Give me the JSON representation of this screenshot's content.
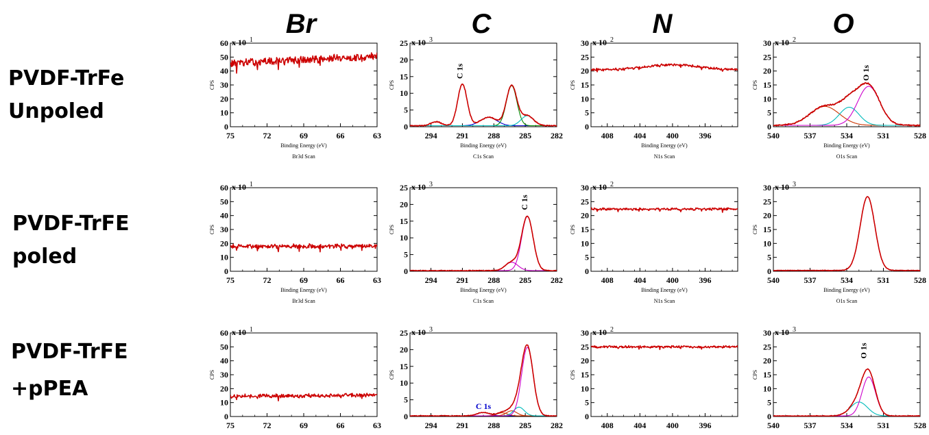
{
  "column_titles": [
    "Br",
    "C",
    "N",
    "O"
  ],
  "row_labels": [
    [
      "PVDF-TrFe",
      "Unpoled"
    ],
    [
      "PVDF-TrFE",
      "poled"
    ],
    [
      "PVDF-TrFE",
      "+pPEA"
    ]
  ],
  "colors": {
    "data": "#cc0000",
    "fit_envelope": "#b03010",
    "peak_magenta": "#cc00cc",
    "peak_cyan": "#00bbbb",
    "peak_blue": "#0000cc",
    "peak_green": "#008800"
  },
  "chart_data": [
    {
      "id": "br-unpoled",
      "type": "line",
      "row": 0,
      "col": 0,
      "xlim": [
        75,
        63
      ],
      "xticks": [
        75,
        72,
        69,
        66,
        63
      ],
      "ylim": [
        0,
        60
      ],
      "yticks": [
        0,
        10,
        20,
        30,
        40,
        50,
        60
      ],
      "multiplier": "x 10",
      "exponent": "1",
      "ylabel": "CPS",
      "xlabel": "Binding Energy (eV)",
      "scan_label": "Br3d Scan",
      "data": {
        "type": "flat",
        "level": 48,
        "slope": 5,
        "noise": 2.2
      },
      "peaks": [],
      "annotations": []
    },
    {
      "id": "c-unpoled",
      "type": "line",
      "row": 0,
      "col": 1,
      "xlim": [
        296,
        282
      ],
      "xticks": [
        294,
        291,
        288,
        285,
        282
      ],
      "ylim": [
        0,
        25
      ],
      "yticks": [
        0,
        5,
        10,
        15,
        20,
        25
      ],
      "multiplier": "x 10",
      "exponent": "3",
      "ylabel": "CPS",
      "xlabel": "Binding Energy (eV)",
      "scan_label": "C1s Scan",
      "data": {
        "type": "peaks",
        "baseline": 0.3,
        "noise": 0.15
      },
      "peaks": [
        {
          "center": 293.5,
          "amp": 1.2,
          "width": 0.5,
          "color": "envelope"
        },
        {
          "center": 291.0,
          "amp": 12.5,
          "width": 0.45,
          "color": "envelope"
        },
        {
          "center": 288.5,
          "amp": 2.5,
          "width": 0.8,
          "color": "#0000cc"
        },
        {
          "center": 286.3,
          "amp": 12.0,
          "width": 0.5,
          "color": "#008800"
        },
        {
          "center": 284.8,
          "amp": 3.0,
          "width": 0.6,
          "color": "#00bbbb"
        }
      ],
      "annotations": [
        {
          "text": "C 1s",
          "x": 291.0,
          "y": 13.5,
          "rotate": -90,
          "color": "#000000"
        }
      ]
    },
    {
      "id": "n-unpoled",
      "type": "line",
      "row": 0,
      "col": 2,
      "xlim": [
        410,
        392
      ],
      "xticks": [
        408,
        404,
        400,
        396
      ],
      "ylim": [
        0,
        30
      ],
      "yticks": [
        0,
        5,
        10,
        15,
        20,
        25,
        30
      ],
      "multiplier": "x 10",
      "exponent": "2",
      "ylabel": "CPS",
      "xlabel": "Binding Energy (eV)",
      "scan_label": "N1s Scan",
      "data": {
        "type": "bump",
        "level": 20.5,
        "bump_center": 400,
        "bump_amp": 1.8,
        "bump_width": 3,
        "noise": 0.35
      },
      "peaks": [],
      "annotations": []
    },
    {
      "id": "o-unpoled",
      "type": "line",
      "row": 0,
      "col": 3,
      "xlim": [
        540,
        528
      ],
      "xticks": [
        540,
        537,
        534,
        531,
        528
      ],
      "ylim": [
        0,
        30
      ],
      "yticks": [
        0,
        5,
        10,
        15,
        20,
        25,
        30
      ],
      "multiplier": "x 10",
      "exponent": "2",
      "ylabel": "CPS",
      "xlabel": "Binding Energy (eV)",
      "scan_label": "O1s Scan",
      "data": {
        "type": "peaks",
        "baseline": 0.5,
        "noise": 0.25
      },
      "peaks": [
        {
          "center": 535.8,
          "amp": 6.8,
          "width": 1.2,
          "color": "#cc3300"
        },
        {
          "center": 533.8,
          "amp": 6.5,
          "width": 0.8,
          "color": "#00bbbb"
        },
        {
          "center": 532.2,
          "amp": 14.0,
          "width": 0.9,
          "color": "#cc00cc"
        }
      ],
      "annotations": [
        {
          "text": "O 1s",
          "x": 532.2,
          "y": 15.5,
          "rotate": -90,
          "color": "#000000"
        }
      ]
    },
    {
      "id": "br-poled",
      "type": "line",
      "row": 1,
      "col": 0,
      "xlim": [
        75,
        63
      ],
      "xticks": [
        75,
        72,
        69,
        66,
        63
      ],
      "ylim": [
        0,
        60
      ],
      "yticks": [
        0,
        10,
        20,
        30,
        40,
        50,
        60
      ],
      "multiplier": "x 10",
      "exponent": "1",
      "ylabel": "CPS",
      "xlabel": "Binding Energy (eV)",
      "scan_label": "Br3d Scan",
      "data": {
        "type": "flat",
        "level": 18,
        "slope": 0,
        "noise": 1.3
      },
      "peaks": [],
      "annotations": []
    },
    {
      "id": "c-poled",
      "type": "line",
      "row": 1,
      "col": 1,
      "xlim": [
        296,
        282
      ],
      "xticks": [
        294,
        291,
        288,
        285,
        282
      ],
      "ylim": [
        0,
        25
      ],
      "yticks": [
        0,
        5,
        10,
        15,
        20,
        25
      ],
      "multiplier": "x 10",
      "exponent": "3",
      "ylabel": "CPS",
      "xlabel": "Binding Energy (eV)",
      "scan_label": "C1s Scan",
      "data": {
        "type": "peaks",
        "baseline": 0.2,
        "noise": 0.1
      },
      "peaks": [
        {
          "center": 286.3,
          "amp": 2.5,
          "width": 0.6,
          "color": "#cc00cc"
        },
        {
          "center": 284.8,
          "amp": 16.2,
          "width": 0.55,
          "color": "#cc00cc"
        }
      ],
      "annotations": [
        {
          "text": "C 1s",
          "x": 284.8,
          "y": 17.5,
          "rotate": -90,
          "color": "#000000"
        }
      ]
    },
    {
      "id": "n-poled",
      "type": "line",
      "row": 1,
      "col": 2,
      "xlim": [
        410,
        392
      ],
      "xticks": [
        408,
        404,
        400,
        396
      ],
      "ylim": [
        0,
        30
      ],
      "yticks": [
        0,
        5,
        10,
        15,
        20,
        25,
        30
      ],
      "multiplier": "x 10",
      "exponent": "2",
      "ylabel": "CPS",
      "xlabel": "Binding Energy (eV)",
      "scan_label": "N1s Scan",
      "data": {
        "type": "flat",
        "level": 22.3,
        "slope": 0,
        "noise": 0.35
      },
      "peaks": [],
      "annotations": []
    },
    {
      "id": "o-poled",
      "type": "line",
      "row": 1,
      "col": 3,
      "xlim": [
        540,
        528
      ],
      "xticks": [
        540,
        537,
        534,
        531,
        528
      ],
      "ylim": [
        0,
        30
      ],
      "yticks": [
        0,
        5,
        10,
        15,
        20,
        25,
        30
      ],
      "multiplier": "x 10",
      "exponent": "3",
      "ylabel": "CPS",
      "xlabel": "Binding Energy (eV)",
      "scan_label": "O1s Scan",
      "data": {
        "type": "peaks",
        "baseline": 0.3,
        "noise": 0.1
      },
      "peaks": [
        {
          "center": 532.3,
          "amp": 26.5,
          "width": 0.6,
          "color": "#cc00cc"
        }
      ],
      "annotations": []
    },
    {
      "id": "br-ppea",
      "type": "line",
      "row": 2,
      "col": 0,
      "xlim": [
        75,
        63
      ],
      "xticks": [
        75,
        72,
        69,
        66,
        63
      ],
      "ylim": [
        0,
        60
      ],
      "yticks": [
        0,
        10,
        20,
        30,
        40,
        50,
        60
      ],
      "multiplier": "x 10",
      "exponent": "1",
      "ylabel": "CPS",
      "xlabel": "",
      "scan_label": "",
      "data": {
        "type": "flat",
        "level": 15,
        "slope": 1,
        "noise": 1.1
      },
      "peaks": [],
      "annotations": []
    },
    {
      "id": "c-ppea",
      "type": "line",
      "row": 2,
      "col": 1,
      "xlim": [
        296,
        282
      ],
      "xticks": [
        294,
        291,
        288,
        285,
        282
      ],
      "ylim": [
        0,
        25
      ],
      "yticks": [
        0,
        5,
        10,
        15,
        20,
        25
      ],
      "multiplier": "x 10",
      "exponent": "3",
      "ylabel": "CPS",
      "xlabel": "",
      "scan_label": "",
      "data": {
        "type": "peaks",
        "baseline": 0.2,
        "noise": 0.1
      },
      "peaks": [
        {
          "center": 289.0,
          "amp": 1.0,
          "width": 0.6,
          "color": "#0000cc"
        },
        {
          "center": 287.2,
          "amp": 0.9,
          "width": 0.5,
          "color": "#cc3300"
        },
        {
          "center": 286.3,
          "amp": 1.5,
          "width": 0.5,
          "color": "#cc3300"
        },
        {
          "center": 285.6,
          "amp": 2.6,
          "width": 0.5,
          "color": "#00bbbb"
        },
        {
          "center": 284.8,
          "amp": 20.5,
          "width": 0.55,
          "color": "#cc00cc"
        }
      ],
      "annotations": [
        {
          "text": "C 1s",
          "x": 289.0,
          "y": 2.3,
          "rotate": 0,
          "color": "#0000cc"
        }
      ]
    },
    {
      "id": "n-ppea",
      "type": "line",
      "row": 2,
      "col": 2,
      "xlim": [
        410,
        392
      ],
      "xticks": [
        408,
        404,
        400,
        396
      ],
      "ylim": [
        0,
        30
      ],
      "yticks": [
        0,
        5,
        10,
        15,
        20,
        25,
        30
      ],
      "multiplier": "x 10",
      "exponent": "2",
      "ylabel": "CPS",
      "xlabel": "",
      "scan_label": "",
      "data": {
        "type": "flat",
        "level": 25,
        "slope": 0,
        "noise": 0.35
      },
      "peaks": [],
      "annotations": []
    },
    {
      "id": "o-ppea",
      "type": "line",
      "row": 2,
      "col": 3,
      "xlim": [
        540,
        528
      ],
      "xticks": [
        540,
        537,
        534,
        531,
        528
      ],
      "ylim": [
        0,
        30
      ],
      "yticks": [
        0,
        5,
        10,
        15,
        20,
        25,
        30
      ],
      "multiplier": "x 10",
      "exponent": "3",
      "ylabel": "CPS",
      "xlabel": "",
      "scan_label": "",
      "data": {
        "type": "peaks",
        "baseline": 0.2,
        "noise": 0.12
      },
      "peaks": [
        {
          "center": 533.0,
          "amp": 5.0,
          "width": 0.7,
          "color": "#00bbbb"
        },
        {
          "center": 532.2,
          "amp": 14.0,
          "width": 0.55,
          "color": "#cc00cc"
        }
      ],
      "annotations": [
        {
          "text": "O 1s",
          "x": 532.4,
          "y": 19.8,
          "rotate": -90,
          "color": "#000000"
        }
      ]
    }
  ]
}
